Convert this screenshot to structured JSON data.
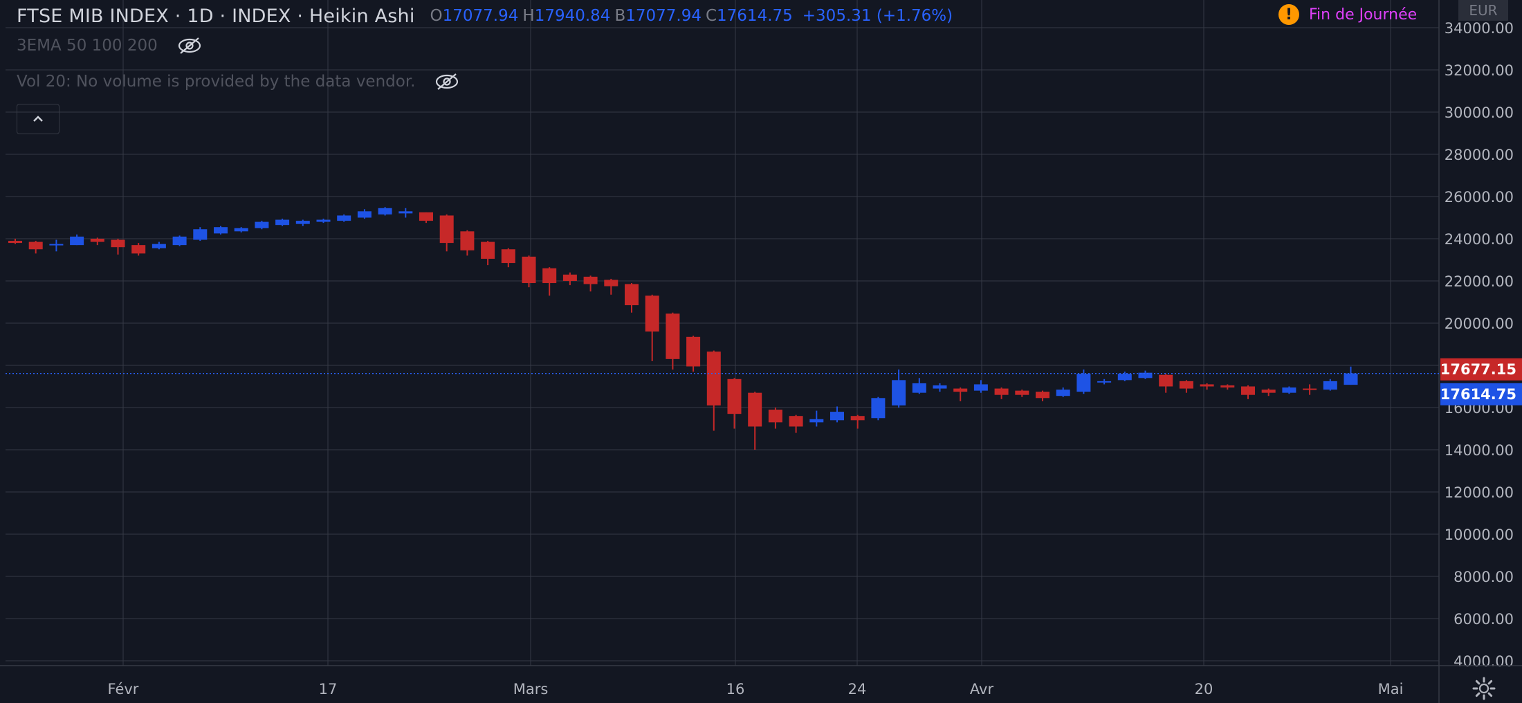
{
  "header": {
    "title": "FTSE MIB INDEX · 1D · INDEX · Heikin Ashi",
    "ohlc": [
      {
        "key": "O",
        "value": "17077.94"
      },
      {
        "key": "H",
        "value": "17940.84"
      },
      {
        "key": "B",
        "value": "17077.94"
      },
      {
        "key": "C",
        "value": "17614.75"
      }
    ],
    "change": "+305.31 (+1.76%)",
    "status_text": "Fin de Journée",
    "status_icon": "warning-icon",
    "currency": "EUR"
  },
  "studies": [
    {
      "label": "3EMA 50 100 200",
      "icon": "eye-off-icon"
    },
    {
      "label": "Vol 20: No volume is provided by the data vendor.",
      "icon": "eye-off-icon"
    }
  ],
  "controls": {
    "collapse_icon": "chevron-up-icon",
    "settings_icon": "gear-icon"
  },
  "colors": {
    "background": "#131722",
    "grid": "#363a45",
    "up": "#1e53e5",
    "down": "#c62828",
    "axis_text": "#b2b5be",
    "crosshair": "#2962ff",
    "status": "#e040fb",
    "warning": "#ff9800"
  },
  "chart_data": {
    "type": "candlestick",
    "chart_style": "Heikin Ashi",
    "symbol": "FTSE MIB INDEX",
    "interval": "1D",
    "grid": true,
    "price_scale": "right",
    "ylim": [
      4000,
      34000
    ],
    "y_ticks": [
      "4000.00",
      "6000.00",
      "8000.00",
      "10000.00",
      "12000.00",
      "14000.00",
      "16000.00",
      "18000.00",
      "20000.00",
      "22000.00",
      "24000.00",
      "26000.00",
      "28000.00",
      "30000.00",
      "32000.00",
      "34000.00"
    ],
    "x_ticks": [
      "Févr",
      "17",
      "Mars",
      "16",
      "24",
      "Avr",
      "20",
      "Mai"
    ],
    "price_labels": [
      {
        "value": 17677.15,
        "text": "17677.15",
        "direction": "down"
      },
      {
        "value": 17614.75,
        "text": "17614.75",
        "direction": "up"
      }
    ],
    "candles": [
      {
        "o": 23900,
        "h": 24000,
        "l": 23750,
        "c": 23800
      },
      {
        "o": 23850,
        "h": 23900,
        "l": 23300,
        "c": 23500
      },
      {
        "o": 23700,
        "h": 23950,
        "l": 23400,
        "c": 23750
      },
      {
        "o": 23700,
        "h": 24200,
        "l": 23700,
        "c": 24100
      },
      {
        "o": 24000,
        "h": 24050,
        "l": 23700,
        "c": 23850
      },
      {
        "o": 23950,
        "h": 24000,
        "l": 23250,
        "c": 23600
      },
      {
        "o": 23700,
        "h": 23800,
        "l": 23200,
        "c": 23300
      },
      {
        "o": 23550,
        "h": 23850,
        "l": 23500,
        "c": 23750
      },
      {
        "o": 23700,
        "h": 24150,
        "l": 23650,
        "c": 24100
      },
      {
        "o": 23950,
        "h": 24550,
        "l": 23900,
        "c": 24450
      },
      {
        "o": 24250,
        "h": 24600,
        "l": 24200,
        "c": 24550
      },
      {
        "o": 24350,
        "h": 24550,
        "l": 24300,
        "c": 24500
      },
      {
        "o": 24500,
        "h": 24850,
        "l": 24450,
        "c": 24800
      },
      {
        "o": 24650,
        "h": 24950,
        "l": 24600,
        "c": 24900
      },
      {
        "o": 24700,
        "h": 24900,
        "l": 24600,
        "c": 24850
      },
      {
        "o": 24800,
        "h": 24950,
        "l": 24750,
        "c": 24900
      },
      {
        "o": 24850,
        "h": 25150,
        "l": 24800,
        "c": 25100
      },
      {
        "o": 25000,
        "h": 25400,
        "l": 24950,
        "c": 25300
      },
      {
        "o": 25150,
        "h": 25500,
        "l": 25100,
        "c": 25450
      },
      {
        "o": 25200,
        "h": 25450,
        "l": 25000,
        "c": 25300
      },
      {
        "o": 25250,
        "h": 25250,
        "l": 24750,
        "c": 24850
      },
      {
        "o": 25100,
        "h": 25150,
        "l": 23400,
        "c": 23800
      },
      {
        "o": 24350,
        "h": 24400,
        "l": 23200,
        "c": 23450
      },
      {
        "o": 23850,
        "h": 23900,
        "l": 22750,
        "c": 23050
      },
      {
        "o": 23500,
        "h": 23550,
        "l": 22650,
        "c": 22850
      },
      {
        "o": 23150,
        "h": 23200,
        "l": 21700,
        "c": 21900
      },
      {
        "o": 22600,
        "h": 22650,
        "l": 21300,
        "c": 21900
      },
      {
        "o": 22300,
        "h": 22400,
        "l": 21800,
        "c": 22000
      },
      {
        "o": 22200,
        "h": 22250,
        "l": 21500,
        "c": 21850
      },
      {
        "o": 22050,
        "h": 22100,
        "l": 21350,
        "c": 21750
      },
      {
        "o": 21850,
        "h": 21900,
        "l": 20500,
        "c": 20850
      },
      {
        "o": 21300,
        "h": 21350,
        "l": 18200,
        "c": 19600
      },
      {
        "o": 20450,
        "h": 20500,
        "l": 17800,
        "c": 18300
      },
      {
        "o": 19350,
        "h": 19400,
        "l": 17700,
        "c": 17950
      },
      {
        "o": 18650,
        "h": 18700,
        "l": 14900,
        "c": 16100
      },
      {
        "o": 17350,
        "h": 17400,
        "l": 15000,
        "c": 15700
      },
      {
        "o": 16700,
        "h": 16750,
        "l": 14000,
        "c": 15100
      },
      {
        "o": 15900,
        "h": 16000,
        "l": 15000,
        "c": 15300
      },
      {
        "o": 15600,
        "h": 15650,
        "l": 14800,
        "c": 15100
      },
      {
        "o": 15300,
        "h": 15850,
        "l": 15100,
        "c": 15450
      },
      {
        "o": 15400,
        "h": 16050,
        "l": 15300,
        "c": 15800
      },
      {
        "o": 15600,
        "h": 15650,
        "l": 15000,
        "c": 15400
      },
      {
        "o": 15500,
        "h": 16500,
        "l": 15400,
        "c": 16450
      },
      {
        "o": 16100,
        "h": 17800,
        "l": 16000,
        "c": 17300
      },
      {
        "o": 16700,
        "h": 17400,
        "l": 16650,
        "c": 17150
      },
      {
        "o": 16900,
        "h": 17150,
        "l": 16750,
        "c": 17050
      },
      {
        "o": 16900,
        "h": 16950,
        "l": 16300,
        "c": 16750
      },
      {
        "o": 16800,
        "h": 17300,
        "l": 16700,
        "c": 17100
      },
      {
        "o": 16900,
        "h": 16950,
        "l": 16400,
        "c": 16600
      },
      {
        "o": 16800,
        "h": 16850,
        "l": 16500,
        "c": 16600
      },
      {
        "o": 16750,
        "h": 16800,
        "l": 16300,
        "c": 16450
      },
      {
        "o": 16550,
        "h": 16950,
        "l": 16500,
        "c": 16850
      },
      {
        "o": 16750,
        "h": 17800,
        "l": 16650,
        "c": 17600
      },
      {
        "o": 17200,
        "h": 17350,
        "l": 17100,
        "c": 17250
      },
      {
        "o": 17300,
        "h": 17700,
        "l": 17250,
        "c": 17600
      },
      {
        "o": 17400,
        "h": 17750,
        "l": 17350,
        "c": 17650
      },
      {
        "o": 17550,
        "h": 17600,
        "l": 16700,
        "c": 17000
      },
      {
        "o": 17250,
        "h": 17300,
        "l": 16700,
        "c": 16900
      },
      {
        "o": 17100,
        "h": 17150,
        "l": 16850,
        "c": 17000
      },
      {
        "o": 17050,
        "h": 17100,
        "l": 16850,
        "c": 16950
      },
      {
        "o": 17000,
        "h": 17050,
        "l": 16400,
        "c": 16600
      },
      {
        "o": 16850,
        "h": 16900,
        "l": 16550,
        "c": 16700
      },
      {
        "o": 16700,
        "h": 17000,
        "l": 16650,
        "c": 16950
      },
      {
        "o": 16900,
        "h": 17100,
        "l": 16600,
        "c": 16850
      },
      {
        "o": 16850,
        "h": 17350,
        "l": 16800,
        "c": 17250
      },
      {
        "o": 17077.94,
        "h": 17940.84,
        "l": 17077.94,
        "c": 17614.75
      }
    ]
  }
}
